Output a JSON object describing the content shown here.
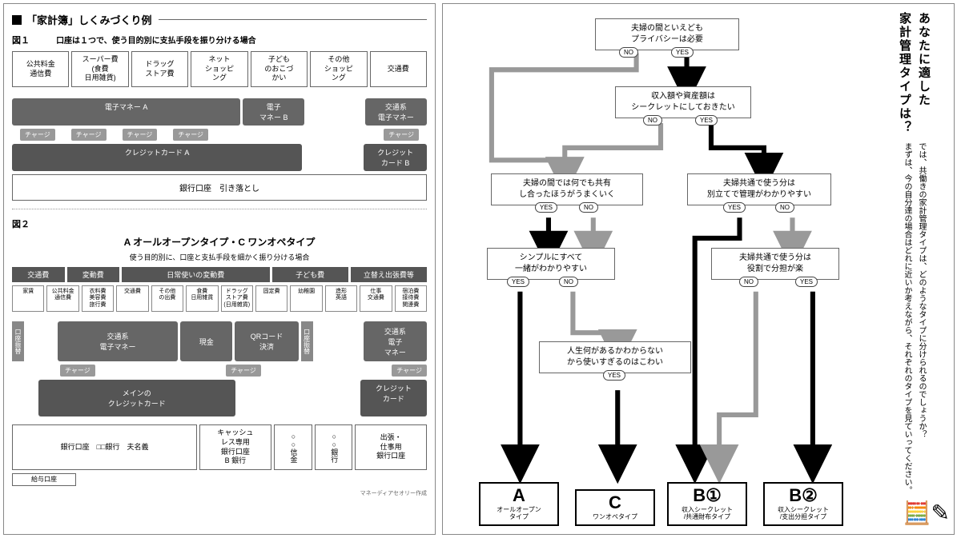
{
  "left": {
    "section_title": "「家計簿」しくみづくり例",
    "fig1": {
      "label": "図１",
      "desc": "口座は１つで、使う目的別に支払手段を振り分ける場合",
      "expenses": [
        "公共料金\n通信費",
        "スーパー費\n(食費\n日用雑貨)",
        "ドラッグ\nストア費",
        "ネット\nショッピ\nング",
        "子ども\nのおこづ\nかい",
        "その他\nショッピ\nング",
        "交通費"
      ],
      "emoney_a": "電子マネー A",
      "emoney_b": "電子\nマネー B",
      "transit_emoney": "交通系\n電子マネー",
      "charge": "チャージ",
      "credit_a": "クレジットカード A",
      "credit_b": "クレジット\nカード B",
      "bank": "銀行口座　引き落とし"
    },
    "fig2": {
      "label": "図２",
      "title": "A オールオープンタイプ・C ワンオペタイプ",
      "subtitle": "使う目的別に、口座と支払手段を細かく振り分ける場合",
      "cats": [
        "交通費",
        "変動費",
        "日常使いの変動費",
        "子ども費",
        "立替え出張費等"
      ],
      "subs": [
        "家賃",
        "公共料金\n通信費",
        "衣料費\n美容費\n旅行費",
        "交通費",
        "その他\nの出費",
        "食費\n日用雑貨",
        "ドラッグ\nストア費\n(日用雑貨)",
        "固定費",
        "幼稚園",
        "造形\n英語",
        "仕事\n交通費",
        "宿泊費\n接待費\n関連費"
      ],
      "transit_em": "交通系\n電子マネー",
      "cash": "現金",
      "qr": "QRコード\n決済",
      "transit_em2": "交通系\n電子\nマネー",
      "transfer": "口座振替",
      "main_credit": "メインの\nクレジットカード",
      "credit2": "クレジット\nカード",
      "bank1": "銀行口座　□□銀行　夫名義",
      "bank2": "キャッシュ\nレス専用\n銀行口座\nB 銀行",
      "bank3": "○○信金",
      "bank4": "○○銀行",
      "bank5": "出張・\n仕事用\n銀行口座",
      "salary": "給与口座",
      "credit_note": "マネーディアセオリー作成"
    }
  },
  "right": {
    "title1": "あなたに適した",
    "title2": "家計管理タイプは？",
    "intro1": "では、共働きの家計管理タイプは、どのようなタイプに分けられるのでしょうか？",
    "intro2": "まずは、今の自分達の場合はどれに近いか考えながら、それぞれのタイプを見ていってください。",
    "q1": "夫婦の間といえども\nプライバシーは必要",
    "q2": "収入額や資産額は\nシークレットにしておきたい",
    "q3": "夫婦の間では何でも共有\nし合ったほうがうまくいく",
    "q4": "夫婦共通で使う分は\n別立てで管理がわかりやすい",
    "q5": "シンプルにすべて\n一緒がわかりやすい",
    "q6": "夫婦共通で使う分は\n役割で分担が楽",
    "q7": "人生何があるかわからない\nから使いすぎるのはこわい",
    "yes": "YES",
    "no": "NO",
    "results": [
      {
        "letter": "A",
        "sub": "オールオープン\nタイプ"
      },
      {
        "letter": "C",
        "sub": "ワンオペタイプ"
      },
      {
        "letter": "B①",
        "sub": "収入シークレット\n/共通財布タイプ"
      },
      {
        "letter": "B②",
        "sub": "収入シークレット\n/支出分担タイプ"
      }
    ]
  },
  "colors": {
    "dark": "#555",
    "mid": "#888",
    "light": "#aaa",
    "black": "#000",
    "gray_arrow": "#999"
  }
}
